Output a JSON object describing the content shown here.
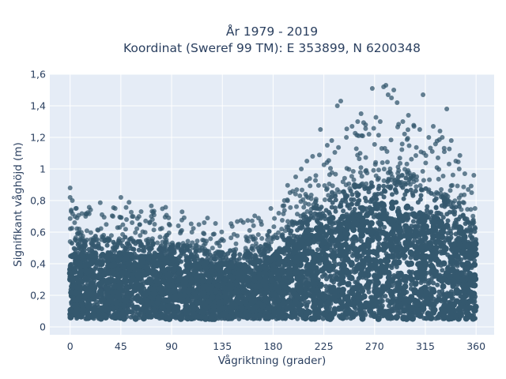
{
  "chart_data": {
    "type": "scatter",
    "title_line1": "År 1979 - 2019",
    "title_line2": "Koordinat (Sweref 99 TM): E 353899, N 6200348",
    "xlabel": "Vågriktning (grader)",
    "ylabel": "Signifikant våghöjd (m)",
    "xlim": [
      -18,
      376
    ],
    "ylim": [
      -0.05,
      1.6
    ],
    "xticks": [
      0,
      45,
      90,
      135,
      180,
      225,
      270,
      315,
      360
    ],
    "xtick_labels": [
      "0",
      "45",
      "90",
      "135",
      "180",
      "225",
      "270",
      "315",
      "360"
    ],
    "yticks": [
      0,
      0.2,
      0.4,
      0.6,
      0.8,
      1.0,
      1.2,
      1.4,
      1.6
    ],
    "ytick_labels": [
      "0",
      "0,2",
      "0,4",
      "0,6",
      "0,8",
      "1",
      "1,2",
      "1,4",
      "1,6"
    ],
    "grid": true,
    "colors": {
      "marker": "#34586e",
      "plot_bg": "#e5ecf6",
      "grid": "#ffffff",
      "text": "#2a3f5f"
    },
    "envelope": {
      "direction_deg": [
        0,
        20,
        45,
        70,
        90,
        120,
        140,
        160,
        175,
        190,
        205,
        225,
        250,
        270,
        285,
        300,
        315,
        330,
        345,
        360
      ],
      "dense_top_m": [
        0.54,
        0.55,
        0.55,
        0.54,
        0.52,
        0.48,
        0.47,
        0.48,
        0.52,
        0.6,
        0.7,
        0.8,
        0.88,
        0.92,
        0.93,
        0.9,
        0.86,
        0.82,
        0.76,
        0.62
      ],
      "dense_bottom_m": 0.05
    },
    "outliers": [
      [
        0,
        0.88
      ],
      [
        0,
        0.82
      ],
      [
        2,
        0.8
      ],
      [
        5,
        0.75
      ],
      [
        1,
        0.74
      ],
      [
        4,
        0.66
      ],
      [
        8,
        0.62
      ],
      [
        45,
        0.82
      ],
      [
        40,
        0.75
      ],
      [
        38,
        0.7
      ],
      [
        50,
        0.68
      ],
      [
        63,
        0.73
      ],
      [
        55,
        0.66
      ],
      [
        72,
        0.7
      ],
      [
        73,
        0.68
      ],
      [
        80,
        0.62
      ],
      [
        96,
        0.64
      ],
      [
        108,
        0.6
      ],
      [
        130,
        0.53
      ],
      [
        156,
        0.57
      ],
      [
        170,
        0.56
      ],
      [
        185,
        0.72
      ],
      [
        190,
        0.8
      ],
      [
        195,
        0.85
      ],
      [
        200,
        0.95
      ],
      [
        205,
        1.0
      ],
      [
        210,
        1.05
      ],
      [
        215,
        1.08
      ],
      [
        222,
        1.25
      ],
      [
        228,
        1.15
      ],
      [
        232,
        1.18
      ],
      [
        237,
        1.4
      ],
      [
        240,
        1.43
      ],
      [
        245,
        1.2
      ],
      [
        250,
        1.27
      ],
      [
        255,
        1.3
      ],
      [
        258,
        1.35
      ],
      [
        262,
        1.28
      ],
      [
        265,
        1.22
      ],
      [
        268,
        1.51
      ],
      [
        275,
        1.3
      ],
      [
        278,
        1.52
      ],
      [
        280,
        1.53
      ],
      [
        282,
        1.47
      ],
      [
        285,
        1.45
      ],
      [
        287,
        1.5
      ],
      [
        290,
        1.42
      ],
      [
        295,
        1.3
      ],
      [
        300,
        1.34
      ],
      [
        305,
        1.27
      ],
      [
        310,
        1.25
      ],
      [
        313,
        1.47
      ],
      [
        318,
        1.2
      ],
      [
        322,
        1.27
      ],
      [
        328,
        1.24
      ],
      [
        330,
        1.2
      ],
      [
        334,
        1.38
      ],
      [
        338,
        1.18
      ],
      [
        342,
        1.05
      ],
      [
        345,
        1.0
      ],
      [
        350,
        0.97
      ],
      [
        353,
        0.87
      ],
      [
        356,
        0.85
      ],
      [
        358,
        0.96
      ],
      [
        359,
        0.75
      ]
    ]
  }
}
